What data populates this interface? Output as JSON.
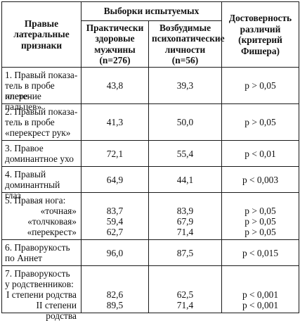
{
  "header": {
    "col_signs": [
      "Правые",
      "латеральные",
      "признаки"
    ],
    "group_title": "Выборки испытуемых",
    "col_healthy": [
      "Практически",
      "здоровые",
      "мужчины",
      "(n=276)"
    ],
    "col_psycho": [
      "Возбудимые",
      "психопатические",
      "личности (n=56)"
    ],
    "col_significance": [
      "Достоверность",
      "различий",
      "(критерий",
      "Фишера)"
    ]
  },
  "rows": [
    {
      "label": [
        "1. Правый показа-",
        "тель в пробе «пере-",
        "плетение пальцев»"
      ],
      "healthy": "43,8",
      "psycho": "39,3",
      "significance": "p > 0,05"
    },
    {
      "label": [
        "2. Правый показа-",
        "тель в пробе",
        "«перекрест рук»"
      ],
      "healthy": "41,3",
      "psycho": "50,0",
      "significance": "p > 0,05"
    },
    {
      "label": [
        "3. Правое",
        "доминантное ухо"
      ],
      "healthy": "72,1",
      "psycho": "55,4",
      "significance": "p < 0,01"
    },
    {
      "label": [
        "4. Правый",
        "доминантный глаз"
      ],
      "healthy": "64,9",
      "psycho": "44,1",
      "significance": "p < 0,003"
    },
    {
      "label": [
        "5. Правая нога:"
      ],
      "sub": [
        {
          "label": "«точная»",
          "healthy": "83,7",
          "psycho": "83,9",
          "significance": "p > 0,05"
        },
        {
          "label": "«толчковая»",
          "healthy": "59,4",
          "psycho": "67,9",
          "significance": "p > 0,05"
        },
        {
          "label": "«перекрест»",
          "healthy": "62,7",
          "psycho": "71,4",
          "significance": "p > 0,05"
        }
      ]
    },
    {
      "label": [
        "6. Праворукость",
        "по Аннет"
      ],
      "healthy": "96,0",
      "psycho": "87,5",
      "significance": "p < 0,015"
    },
    {
      "label": [
        "7. Праворукость",
        "у родственников:"
      ],
      "sub": [
        {
          "label": "I степени родства",
          "healthy": "82,6",
          "psycho": "62,5",
          "significance": "p < 0,001"
        },
        {
          "label": "II степени родства",
          "healthy": "89,5",
          "psycho": "71,4",
          "significance": "p < 0,001"
        }
      ]
    }
  ]
}
